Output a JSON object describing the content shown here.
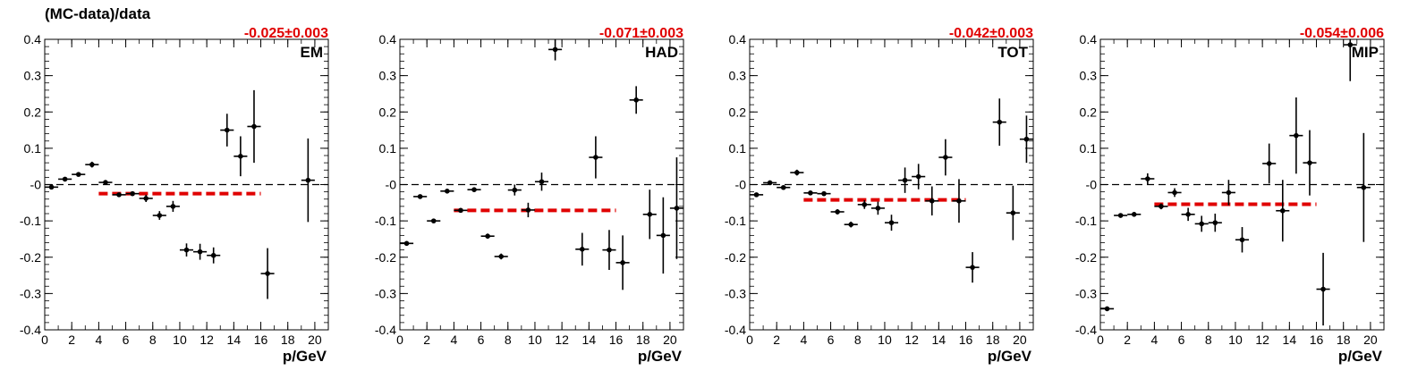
{
  "figure": {
    "ylabel": "(MC-data)/data",
    "xlabel": "p/GeV",
    "y_tick_labels": [
      "-0.4",
      "-0.3",
      "-0.2",
      "-0.1",
      "-0",
      "0.1",
      "0.2",
      "0.3",
      "0.4"
    ],
    "x_tick_labels": [
      "0",
      "2",
      "4",
      "6",
      "8",
      "10",
      "12",
      "14",
      "16",
      "18",
      "20"
    ]
  },
  "colors": {
    "fit": "#e00000",
    "points": "#000000",
    "zero_line": "#000000"
  },
  "chart_data": [
    {
      "type": "scatter",
      "panel_label": "EM",
      "fit_text": "-0.025±0.003",
      "fit_value": -0.025,
      "fit_range": [
        4,
        16
      ],
      "xlabel": "p/GeV",
      "ylabel": "(MC-data)/data",
      "xlim": [
        0,
        21
      ],
      "ylim": [
        -0.4,
        0.4
      ],
      "points": [
        {
          "x": 0.5,
          "y": -0.007,
          "err": 0.005
        },
        {
          "x": 1.5,
          "y": 0.015,
          "err": 0.005
        },
        {
          "x": 2.5,
          "y": 0.028,
          "err": 0.005
        },
        {
          "x": 3.5,
          "y": 0.055,
          "err": 0.008
        },
        {
          "x": 4.5,
          "y": 0.006,
          "err": 0.005
        },
        {
          "x": 5.5,
          "y": -0.028,
          "err": 0.006
        },
        {
          "x": 6.5,
          "y": -0.025,
          "err": 0.006
        },
        {
          "x": 7.5,
          "y": -0.038,
          "err": 0.01
        },
        {
          "x": 8.5,
          "y": -0.085,
          "err": 0.012
        },
        {
          "x": 9.5,
          "y": -0.06,
          "err": 0.015
        },
        {
          "x": 10.5,
          "y": -0.18,
          "err": 0.018
        },
        {
          "x": 11.5,
          "y": -0.185,
          "err": 0.022
        },
        {
          "x": 12.5,
          "y": -0.195,
          "err": 0.022
        },
        {
          "x": 13.5,
          "y": 0.15,
          "err": 0.045
        },
        {
          "x": 14.5,
          "y": 0.078,
          "err": 0.055
        },
        {
          "x": 15.5,
          "y": 0.16,
          "err": 0.1
        },
        {
          "x": 16.5,
          "y": -0.245,
          "err": 0.07
        },
        {
          "x": 19.5,
          "y": 0.012,
          "err": 0.115
        }
      ]
    },
    {
      "type": "scatter",
      "panel_label": "HAD",
      "fit_text": "-0.071±0.003",
      "fit_value": -0.071,
      "fit_range": [
        4,
        16
      ],
      "xlabel": "p/GeV",
      "ylabel": "(MC-data)/data",
      "xlim": [
        0,
        21
      ],
      "ylim": [
        -0.4,
        0.4
      ],
      "points": [
        {
          "x": 0.5,
          "y": -0.162,
          "err": 0.006
        },
        {
          "x": 1.5,
          "y": -0.033,
          "err": 0.005
        },
        {
          "x": 2.5,
          "y": -0.1,
          "err": 0.006
        },
        {
          "x": 3.5,
          "y": -0.018,
          "err": 0.006
        },
        {
          "x": 4.5,
          "y": -0.071,
          "err": 0.005
        },
        {
          "x": 5.5,
          "y": -0.014,
          "err": 0.006
        },
        {
          "x": 6.5,
          "y": -0.142,
          "err": 0.007
        },
        {
          "x": 7.5,
          "y": -0.198,
          "err": 0.008
        },
        {
          "x": 8.5,
          "y": -0.015,
          "err": 0.015
        },
        {
          "x": 9.5,
          "y": -0.07,
          "err": 0.02
        },
        {
          "x": 10.5,
          "y": 0.008,
          "err": 0.025
        },
        {
          "x": 11.5,
          "y": 0.372,
          "err": 0.03
        },
        {
          "x": 13.5,
          "y": -0.178,
          "err": 0.045
        },
        {
          "x": 14.5,
          "y": 0.075,
          "err": 0.058
        },
        {
          "x": 15.5,
          "y": -0.18,
          "err": 0.055
        },
        {
          "x": 16.5,
          "y": -0.215,
          "err": 0.075
        },
        {
          "x": 17.5,
          "y": 0.233,
          "err": 0.038
        },
        {
          "x": 18.5,
          "y": -0.082,
          "err": 0.068
        },
        {
          "x": 19.5,
          "y": -0.14,
          "err": 0.105
        },
        {
          "x": 20.5,
          "y": -0.065,
          "err": 0.14
        }
      ]
    },
    {
      "type": "scatter",
      "panel_label": "TOT",
      "fit_text": "-0.042±0.003",
      "fit_value": -0.042,
      "fit_range": [
        4,
        16
      ],
      "xlabel": "p/GeV",
      "ylabel": "(MC-data)/data",
      "xlim": [
        0,
        21
      ],
      "ylim": [
        -0.4,
        0.4
      ],
      "points": [
        {
          "x": 0.5,
          "y": -0.028,
          "err": 0.005
        },
        {
          "x": 1.5,
          "y": 0.005,
          "err": 0.005
        },
        {
          "x": 2.5,
          "y": -0.008,
          "err": 0.005
        },
        {
          "x": 3.5,
          "y": 0.033,
          "err": 0.008
        },
        {
          "x": 4.5,
          "y": -0.023,
          "err": 0.005
        },
        {
          "x": 5.5,
          "y": -0.025,
          "err": 0.006
        },
        {
          "x": 6.5,
          "y": -0.075,
          "err": 0.007
        },
        {
          "x": 7.5,
          "y": -0.11,
          "err": 0.008
        },
        {
          "x": 8.5,
          "y": -0.055,
          "err": 0.012
        },
        {
          "x": 9.5,
          "y": -0.065,
          "err": 0.018
        },
        {
          "x": 10.5,
          "y": -0.105,
          "err": 0.022
        },
        {
          "x": 11.5,
          "y": 0.012,
          "err": 0.035
        },
        {
          "x": 12.5,
          "y": 0.022,
          "err": 0.035
        },
        {
          "x": 13.5,
          "y": -0.045,
          "err": 0.04
        },
        {
          "x": 14.5,
          "y": 0.075,
          "err": 0.05
        },
        {
          "x": 15.5,
          "y": -0.045,
          "err": 0.06
        },
        {
          "x": 16.5,
          "y": -0.228,
          "err": 0.042
        },
        {
          "x": 18.5,
          "y": 0.172,
          "err": 0.065
        },
        {
          "x": 19.5,
          "y": -0.078,
          "err": 0.075
        },
        {
          "x": 20.5,
          "y": 0.125,
          "err": 0.065
        }
      ]
    },
    {
      "type": "scatter",
      "panel_label": "MIP",
      "fit_text": "-0.054±0.006",
      "fit_value": -0.054,
      "fit_range": [
        4,
        16
      ],
      "xlabel": "p/GeV",
      "ylabel": "(MC-data)/data",
      "xlim": [
        0,
        21
      ],
      "ylim": [
        -0.4,
        0.4
      ],
      "points": [
        {
          "x": 0.5,
          "y": -0.342,
          "err": 0.004
        },
        {
          "x": 1.5,
          "y": -0.085,
          "err": 0.005
        },
        {
          "x": 2.5,
          "y": -0.082,
          "err": 0.006
        },
        {
          "x": 3.5,
          "y": 0.016,
          "err": 0.015
        },
        {
          "x": 4.5,
          "y": -0.06,
          "err": 0.008
        },
        {
          "x": 5.5,
          "y": -0.022,
          "err": 0.012
        },
        {
          "x": 6.5,
          "y": -0.082,
          "err": 0.018
        },
        {
          "x": 7.5,
          "y": -0.108,
          "err": 0.022
        },
        {
          "x": 8.5,
          "y": -0.105,
          "err": 0.025
        },
        {
          "x": 9.5,
          "y": -0.022,
          "err": 0.035
        },
        {
          "x": 10.5,
          "y": -0.152,
          "err": 0.035
        },
        {
          "x": 12.5,
          "y": 0.058,
          "err": 0.055
        },
        {
          "x": 13.5,
          "y": -0.072,
          "err": 0.085
        },
        {
          "x": 14.5,
          "y": 0.135,
          "err": 0.105
        },
        {
          "x": 15.5,
          "y": 0.06,
          "err": 0.09
        },
        {
          "x": 16.5,
          "y": -0.288,
          "err": 0.1
        },
        {
          "x": 18.5,
          "y": 0.385,
          "err": 0.1
        },
        {
          "x": 19.5,
          "y": -0.008,
          "err": 0.15
        }
      ]
    }
  ]
}
